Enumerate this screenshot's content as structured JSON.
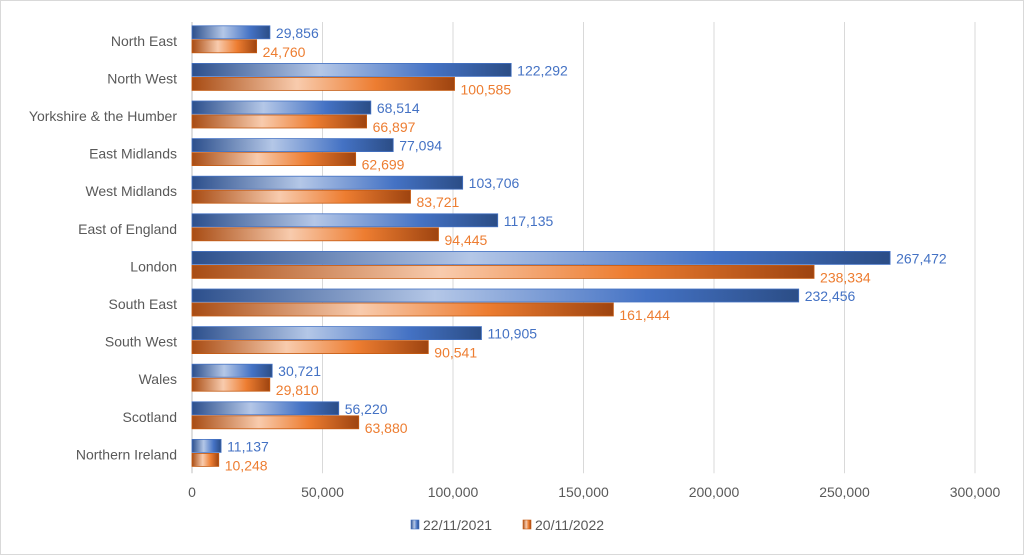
{
  "chart_data": {
    "type": "bar",
    "orientation": "horizontal",
    "title": "",
    "xlabel": "",
    "ylabel": "",
    "categories": [
      "North East",
      "North West",
      "Yorkshire & the Humber",
      "East Midlands",
      "West Midlands",
      "East of England",
      "London",
      "South East",
      "South West",
      "Wales",
      "Scotland",
      "Northern Ireland"
    ],
    "series": [
      {
        "name": "22/11/2021",
        "color": "#4472c4",
        "label_color": "#4472c4",
        "values": [
          29856,
          122292,
          68514,
          77094,
          103706,
          117135,
          267472,
          232456,
          110905,
          30721,
          56220,
          11137
        ],
        "labels": [
          "29,856",
          "122,292",
          "68,514",
          "77,094",
          "103,706",
          "117,135",
          "267,472",
          "232,456",
          "110,905",
          "30,721",
          "56,220",
          "11,137"
        ]
      },
      {
        "name": "20/11/2022",
        "color": "#ed7d31",
        "label_color": "#ed7d31",
        "values": [
          24760,
          100585,
          66897,
          62699,
          83721,
          94445,
          238334,
          161444,
          90541,
          29810,
          63880,
          10248
        ],
        "labels": [
          "24,760",
          "100,585",
          "66,897",
          "62,699",
          "83,721",
          "94,445",
          "238,334",
          "161,444",
          "90,541",
          "29,810",
          "63,880",
          "10,248"
        ]
      }
    ],
    "xlim": [
      0,
      300000
    ],
    "x_ticks": [
      0,
      50000,
      100000,
      150000,
      200000,
      250000,
      300000
    ],
    "x_tick_labels": [
      "0",
      "50,000",
      "100,000",
      "150,000",
      "200,000",
      "250,000",
      "300,000"
    ],
    "grid": "vertical",
    "legend": {
      "position": "bottom",
      "entries": [
        "22/11/2021",
        "20/11/2022"
      ]
    }
  }
}
